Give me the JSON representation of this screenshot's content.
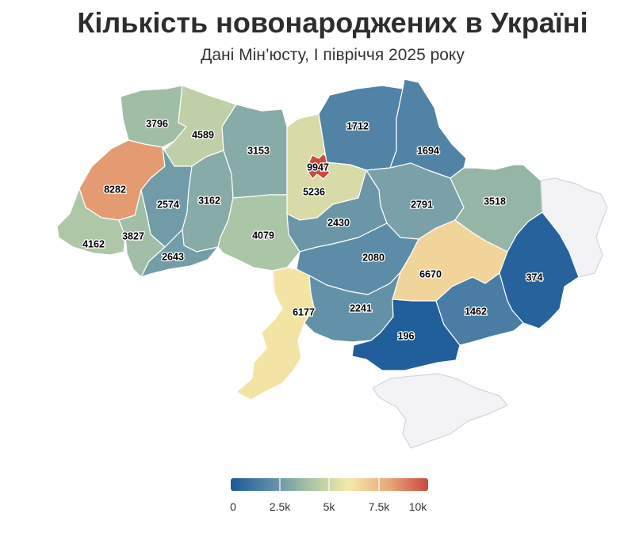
{
  "title": "Кількість новонароджених в Україні",
  "subtitle": "Дані Мін’юсту, І півріччя 2025 року",
  "colors": {
    "scale": [
      "#1a5a9a",
      "#5a8aa8",
      "#a8c4a6",
      "#f5eaa8",
      "#e8a87a",
      "#c9493e"
    ],
    "no_data": "#f3f3f6",
    "no_data_stroke": "#d4d4de",
    "border": "#ffffff"
  },
  "chart_data": {
    "type": "choropleth",
    "color_range": [
      0,
      10000
    ],
    "legend": {
      "position": "bottom",
      "ticks": [
        "0",
        "2.5k",
        "5k",
        "7.5k",
        "10k"
      ]
    },
    "regions": [
      {
        "id": "volyn",
        "value": 3796
      },
      {
        "id": "rivne",
        "value": 4589
      },
      {
        "id": "lviv",
        "value": 8282
      },
      {
        "id": "ternopil",
        "value": 2574
      },
      {
        "id": "khmelnytskyi",
        "value": 3162
      },
      {
        "id": "zhytomyr",
        "value": 3153
      },
      {
        "id": "kyiv-city",
        "value": 9947
      },
      {
        "id": "kyiv-oblast",
        "value": 5236
      },
      {
        "id": "chernihiv",
        "value": 1712
      },
      {
        "id": "sumy",
        "value": 1694
      },
      {
        "id": "zakarpattia",
        "value": 4162
      },
      {
        "id": "ivano-frankivsk",
        "value": 3827
      },
      {
        "id": "chernivtsi",
        "value": 2643
      },
      {
        "id": "vinnytsia",
        "value": 4079
      },
      {
        "id": "cherkasy",
        "value": 2430
      },
      {
        "id": "poltava",
        "value": 2791
      },
      {
        "id": "kharkiv",
        "value": 3518
      },
      {
        "id": "kirovohrad",
        "value": 2080
      },
      {
        "id": "dnipropetrovsk",
        "value": 6670
      },
      {
        "id": "luhansk",
        "value": null
      },
      {
        "id": "donetsk",
        "value": 374
      },
      {
        "id": "odesa",
        "value": 6177
      },
      {
        "id": "mykolaiv",
        "value": 2241
      },
      {
        "id": "kherson",
        "value": 196
      },
      {
        "id": "zaporizhzhia",
        "value": 1462
      },
      {
        "id": "crimea",
        "value": null
      }
    ]
  }
}
